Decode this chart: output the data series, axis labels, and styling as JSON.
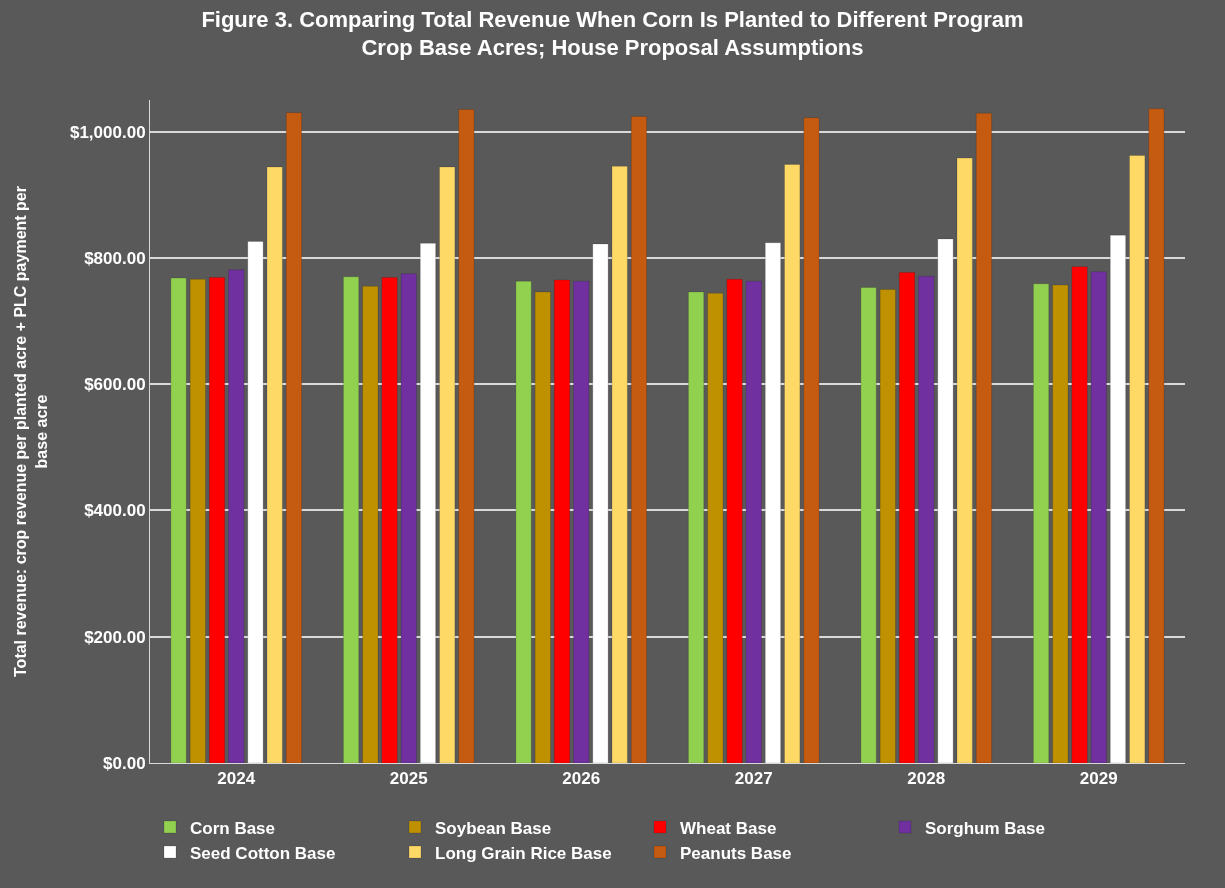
{
  "chart_data": {
    "type": "bar",
    "title": "Figure 3. Comparing Total Revenue When Corn Is Planted to Different Program Crop Base Acres; House Proposal Assumptions",
    "ylabel": "Total revenue: crop revenue per planted acre + PLC payment per base acre",
    "categories": [
      "2024",
      "2025",
      "2026",
      "2027",
      "2028",
      "2029"
    ],
    "series": [
      {
        "name": "Corn Base",
        "color": "#92d050",
        "values": [
          768,
          770,
          763,
          746,
          753,
          759
        ]
      },
      {
        "name": "Soybean Base",
        "color": "#bf9000",
        "values": [
          766,
          755,
          746,
          744,
          750,
          757
        ]
      },
      {
        "name": "Wheat Base",
        "color": "#ff0000",
        "values": [
          769,
          769,
          765,
          766,
          777,
          786
        ]
      },
      {
        "name": "Sorghum Base",
        "color": "#7030a0",
        "values": [
          781,
          775,
          763,
          763,
          771,
          778
        ]
      },
      {
        "name": "Seed Cotton Base",
        "color": "#ffffff",
        "values": [
          826,
          823,
          822,
          824,
          830,
          836
        ]
      },
      {
        "name": "Long Grain Rice Base",
        "color": "#ffd966",
        "values": [
          944,
          944,
          945,
          948,
          958,
          962
        ]
      },
      {
        "name": "Peanuts Base",
        "color": "#c55a11",
        "values": [
          1030,
          1035,
          1024,
          1022,
          1029,
          1036
        ]
      }
    ],
    "ylim": [
      0,
      1050
    ],
    "yticks": [
      {
        "value": 0,
        "label": "$0.00"
      },
      {
        "value": 200,
        "label": "$200.00"
      },
      {
        "value": 400,
        "label": "$400.00"
      },
      {
        "value": 600,
        "label": "$600.00"
      },
      {
        "value": 800,
        "label": "$800.00"
      },
      {
        "value": 1000,
        "label": "$1,000.00"
      }
    ],
    "grid": "y",
    "legend": "bottom"
  }
}
